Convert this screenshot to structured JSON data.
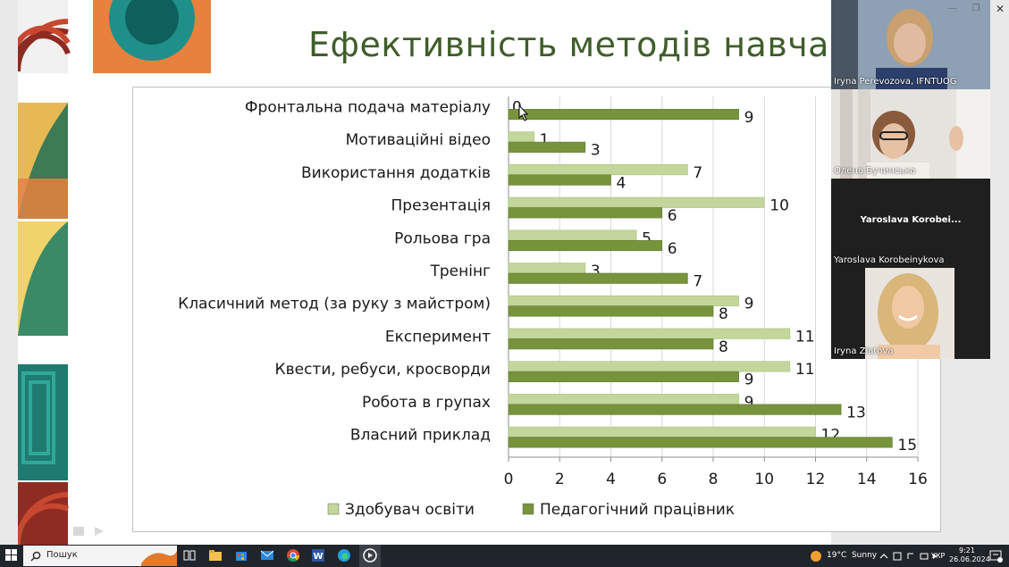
{
  "slide": {
    "title": "Ефективність методів навчання"
  },
  "chart_data": {
    "type": "bar",
    "orientation": "horizontal",
    "title": "",
    "categories": [
      "Фронтальна подача матеріалу",
      "Мотиваційні відео",
      "Використання додатків",
      "Презентація",
      "Рольова гра",
      "Тренінг",
      "Класичний метод (за руку з майстром)",
      "Експеримент",
      "Квести, ребуси, кросворди",
      "Робота в групах",
      "Власний приклад"
    ],
    "series": [
      {
        "name": "Здобувач освіти",
        "color": "#c3d69b",
        "values": [
          0,
          1,
          7,
          10,
          5,
          3,
          9,
          11,
          11,
          9,
          12
        ]
      },
      {
        "name": "Педагогічний працівник",
        "color": "#77933c",
        "values": [
          9,
          3,
          4,
          6,
          6,
          7,
          8,
          8,
          9,
          13,
          15
        ]
      }
    ],
    "xlim": [
      0,
      16
    ],
    "xticks": [
      "0",
      "2",
      "4",
      "6",
      "8",
      "10",
      "12",
      "14",
      "16"
    ],
    "grid": true,
    "legend": "bottom"
  },
  "participants": [
    {
      "name": "Iryna Perevozova, IFNTUOG"
    },
    {
      "name": "Олена Бучинська"
    },
    {
      "name": "Yaroslava Korobeinykova",
      "tile_text": "Yaroslava  Korobei..."
    },
    {
      "name": "Iryna Zlatova"
    }
  ],
  "taskbar": {
    "search_placeholder": "Пошук",
    "weather": "19°C  Sunny",
    "language": "УКР",
    "time": "9:21",
    "date": "26.06.2024"
  },
  "colors": {
    "title": "#3f5e2a",
    "series_light": "#c3d69b",
    "series_dark": "#77933c",
    "taskbar": "#20242b"
  }
}
